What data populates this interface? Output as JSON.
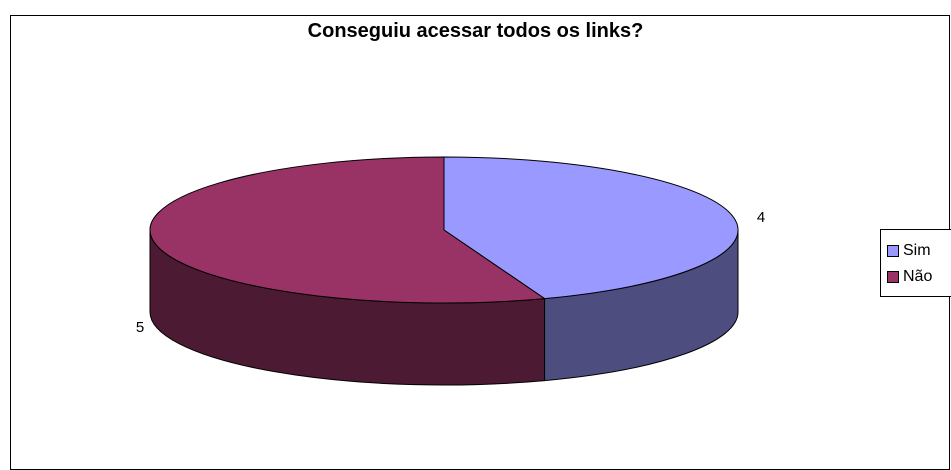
{
  "chart_data": {
    "type": "pie",
    "title": "Conseguiu acessar todos os links?",
    "categories": [
      "Sim",
      "Não"
    ],
    "values": [
      4,
      5
    ],
    "colors": [
      "#9999ff",
      "#993366"
    ],
    "side_colors": [
      "#4d4d80",
      "#4d1a33"
    ],
    "legend_position": "right",
    "three_d": true
  }
}
